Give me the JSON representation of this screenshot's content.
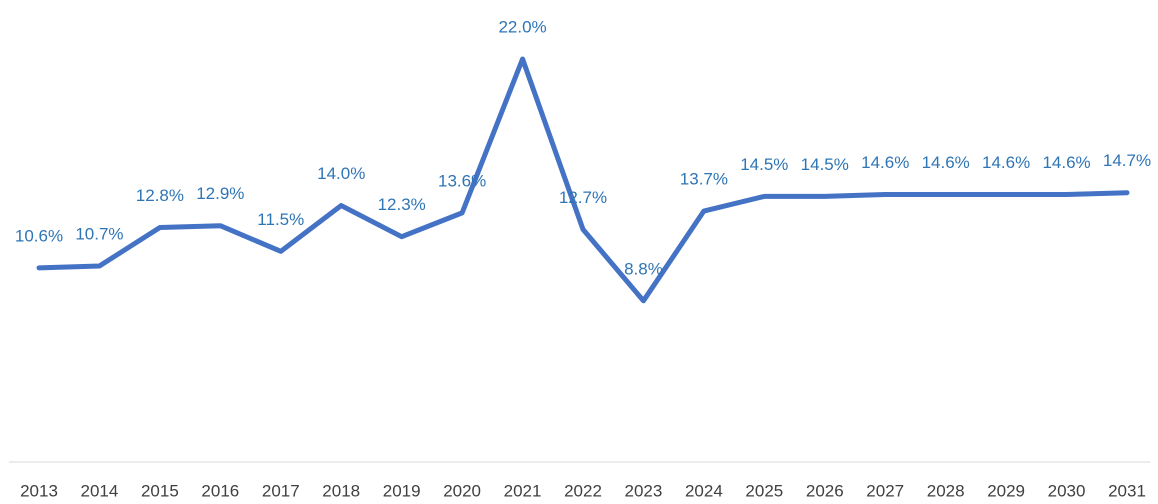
{
  "chart_data": {
    "type": "line",
    "categories": [
      "2013",
      "2014",
      "2015",
      "2016",
      "2017",
      "2018",
      "2019",
      "2020",
      "2021",
      "2022",
      "2023",
      "2024",
      "2025",
      "2026",
      "2027",
      "2028",
      "2029",
      "2030",
      "2031"
    ],
    "series": [
      {
        "color": "#4472c4",
        "values": [
          10.6,
          10.7,
          12.8,
          12.9,
          11.5,
          14.0,
          12.3,
          13.6,
          22.0,
          12.7,
          8.8,
          13.7,
          14.5,
          14.5,
          14.6,
          14.6,
          14.6,
          14.6,
          14.7
        ],
        "value_labels": [
          "10.6%",
          "10.7%",
          "12.8%",
          "12.9%",
          "11.5%",
          "14.0%",
          "12.3%",
          "13.6%",
          "22.0%",
          "12.7%",
          "8.8%",
          "13.7%",
          "14.5%",
          "14.5%",
          "14.6%",
          "14.6%",
          "14.6%",
          "14.6%",
          "14.7%"
        ]
      }
    ]
  }
}
